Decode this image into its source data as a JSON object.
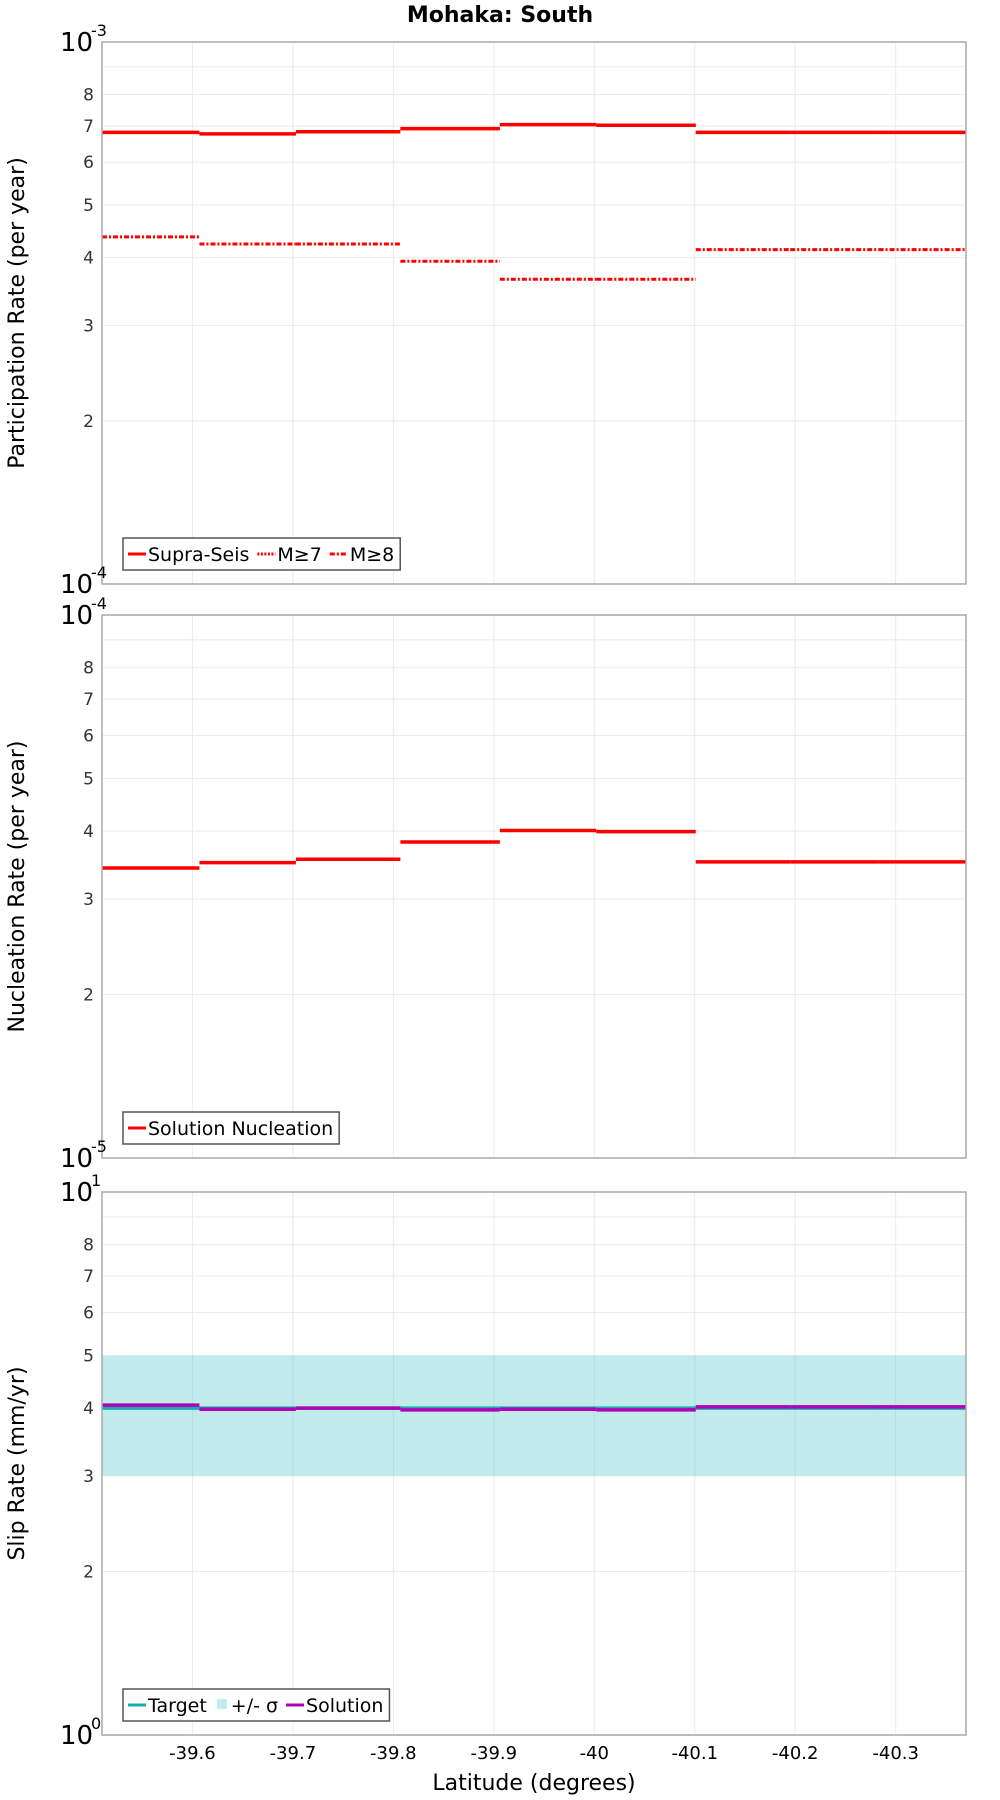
{
  "chart_data": {
    "title": "Mohaka: South",
    "type": "line",
    "xlabel": "Latitude (degrees)",
    "x_ticks": [
      -39.6,
      -39.7,
      -39.8,
      -39.9,
      -40,
      -40.1,
      -40.2,
      -40.3
    ],
    "x_tick_labels": [
      "-39.6",
      "-39.7",
      "-39.8",
      "-39.9",
      "-40",
      "-40.1",
      "-40.2",
      "-40.3"
    ],
    "xlim": [
      -39.51,
      -40.37
    ],
    "segment_edges": [
      -39.51,
      -39.607,
      -39.703,
      -39.807,
      -39.906,
      -40.002,
      -40.101,
      -40.195,
      -40.283,
      -40.37
    ],
    "panels": [
      {
        "id": "participation",
        "type": "step",
        "ylabel": "Participation Rate (per year)",
        "yscale": "log",
        "ylim": [
          0.0001,
          0.001
        ],
        "y_decade_labels": [
          {
            "base": "10",
            "exp": "-3",
            "value": 0.001
          },
          {
            "base": "10",
            "exp": "-4",
            "value": 0.0001
          }
        ],
        "y_minor_ticks": [
          {
            "label": "2",
            "value": 0.0002
          },
          {
            "label": "3",
            "value": 0.0003
          },
          {
            "label": "4",
            "value": 0.0004
          },
          {
            "label": "5",
            "value": 0.0005
          },
          {
            "label": "6",
            "value": 0.0006
          },
          {
            "label": "7",
            "value": 0.0007
          },
          {
            "label": "8",
            "value": 0.0008
          },
          {
            "label": "",
            "value": 0.0009
          }
        ],
        "series": [
          {
            "name": "Supra-Seis",
            "style": "solid",
            "color": "#ff0000",
            "values": [
              0.000681,
              0.000677,
              0.000683,
              0.000692,
              0.000704,
              0.000702,
              0.000681,
              0.000681,
              0.000681
            ]
          },
          {
            "name": "M≥7",
            "style": "dotted",
            "color": "#ff0000",
            "values": [
              0.000681,
              0.000677,
              0.000683,
              0.000692,
              0.000704,
              0.000702,
              0.000681,
              0.000681,
              0.000681
            ]
          },
          {
            "name": "M≥8",
            "style": "dashdot",
            "color": "#ff0000",
            "values": [
              0.000437,
              0.000424,
              0.000424,
              0.000394,
              0.000365,
              0.000365,
              0.000414,
              0.000414,
              0.000414
            ]
          }
        ],
        "legend": {
          "position": "lower-left",
          "items": [
            {
              "label": "Supra-Seis",
              "style": "solid",
              "color": "#ff0000"
            },
            {
              "label": "M≥7",
              "style": "dotted",
              "color": "#ff0000"
            },
            {
              "label": "M≥8",
              "style": "dashdot",
              "color": "#ff0000"
            }
          ]
        }
      },
      {
        "id": "nucleation",
        "type": "step",
        "ylabel": "Nucleation Rate (per year)",
        "yscale": "log",
        "ylim": [
          1e-05,
          0.0001
        ],
        "y_decade_labels": [
          {
            "base": "10",
            "exp": "-4",
            "value": 0.0001
          },
          {
            "base": "10",
            "exp": "-5",
            "value": 1e-05
          }
        ],
        "y_minor_ticks": [
          {
            "label": "2",
            "value": 2e-05
          },
          {
            "label": "3",
            "value": 3e-05
          },
          {
            "label": "4",
            "value": 4e-05
          },
          {
            "label": "5",
            "value": 5e-05
          },
          {
            "label": "6",
            "value": 6e-05
          },
          {
            "label": "7",
            "value": 7e-05
          },
          {
            "label": "8",
            "value": 8e-05
          },
          {
            "label": "",
            "value": 9e-05
          }
        ],
        "series": [
          {
            "name": "Solution Nucleation",
            "style": "solid",
            "color": "#ff0000",
            "values": [
              3.42e-05,
              3.5e-05,
              3.55e-05,
              3.82e-05,
              4.01e-05,
              3.99e-05,
              3.51e-05,
              3.51e-05,
              3.51e-05
            ]
          }
        ],
        "legend": {
          "position": "lower-left",
          "items": [
            {
              "label": "Solution Nucleation",
              "style": "solid",
              "color": "#ff0000"
            }
          ]
        }
      },
      {
        "id": "slip",
        "type": "step",
        "ylabel": "Slip Rate (mm/yr)",
        "yscale": "log",
        "ylim": [
          1,
          10
        ],
        "y_decade_labels": [
          {
            "base": "10",
            "exp": "1",
            "value": 10
          },
          {
            "base": "10",
            "exp": "0",
            "value": 1
          }
        ],
        "y_minor_ticks": [
          {
            "label": "2",
            "value": 2
          },
          {
            "label": "3",
            "value": 3
          },
          {
            "label": "4",
            "value": 4
          },
          {
            "label": "5",
            "value": 5
          },
          {
            "label": "6",
            "value": 6
          },
          {
            "label": "7",
            "value": 7
          },
          {
            "label": "8",
            "value": 8
          },
          {
            "label": "",
            "value": 9
          }
        ],
        "band": {
          "name": "+/- σ",
          "color": "#c2ecec",
          "lower": [
            3,
            3,
            3,
            3,
            3,
            3,
            3,
            3,
            3
          ],
          "upper": [
            5,
            5,
            5,
            5,
            5,
            5,
            5,
            5,
            5
          ]
        },
        "series": [
          {
            "name": "Target",
            "style": "solid",
            "color": "#1aacb0",
            "values": [
              4.0,
              4.0,
              4.0,
              4.0,
              4.0,
              4.0,
              4.0,
              4.0,
              4.0
            ]
          },
          {
            "name": "Solution",
            "style": "solid",
            "color": "#b000b8",
            "values": [
              4.05,
              3.98,
              4.0,
              3.97,
              3.98,
              3.97,
              4.02,
              4.02,
              4.02
            ]
          }
        ],
        "legend": {
          "position": "lower-left",
          "items": [
            {
              "label": "Target",
              "style": "solid",
              "color": "#1aacb0"
            },
            {
              "label": "+/- σ",
              "style": "box",
              "color": "#c2ecec"
            },
            {
              "label": "Solution",
              "style": "solid",
              "color": "#b000b8"
            }
          ]
        }
      }
    ]
  }
}
